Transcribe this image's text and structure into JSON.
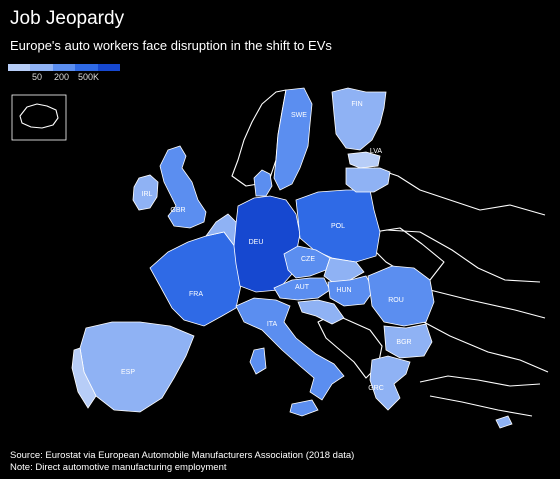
{
  "title": "Job Jeopardy",
  "subtitle": "Europe's auto workers face disruption in the shift to EVs",
  "legend": {
    "ticks": [
      "50",
      "200",
      "500K"
    ],
    "colors": [
      "#b7cdf7",
      "#8fb2f4",
      "#5b8ef0",
      "#2f6ae6",
      "#1648d0"
    ]
  },
  "countries": [
    {
      "code": "DEU",
      "label": "DEU"
    },
    {
      "code": "POL",
      "label": "POL"
    },
    {
      "code": "FRA",
      "label": "FRA"
    },
    {
      "code": "ESP",
      "label": "ESP"
    },
    {
      "code": "ITA",
      "label": "ITA"
    },
    {
      "code": "GBR",
      "label": "GBR"
    },
    {
      "code": "CZE",
      "label": "CZE"
    },
    {
      "code": "ROU",
      "label": "ROU"
    },
    {
      "code": "SWE",
      "label": "SWE"
    },
    {
      "code": "FIN",
      "label": "FIN"
    },
    {
      "code": "LVA",
      "label": "LVA"
    },
    {
      "code": "IRL",
      "label": "IRL"
    },
    {
      "code": "AUT",
      "label": "AUT"
    },
    {
      "code": "HUN",
      "label": "HUN"
    },
    {
      "code": "BGR",
      "label": "BGR"
    },
    {
      "code": "GRC",
      "label": "GRC"
    }
  ],
  "source": "Source: Eurostat via European Automobile Manufacturers Association (2018 data)",
  "note": "Note: Direct automotive manufacturing employment"
}
